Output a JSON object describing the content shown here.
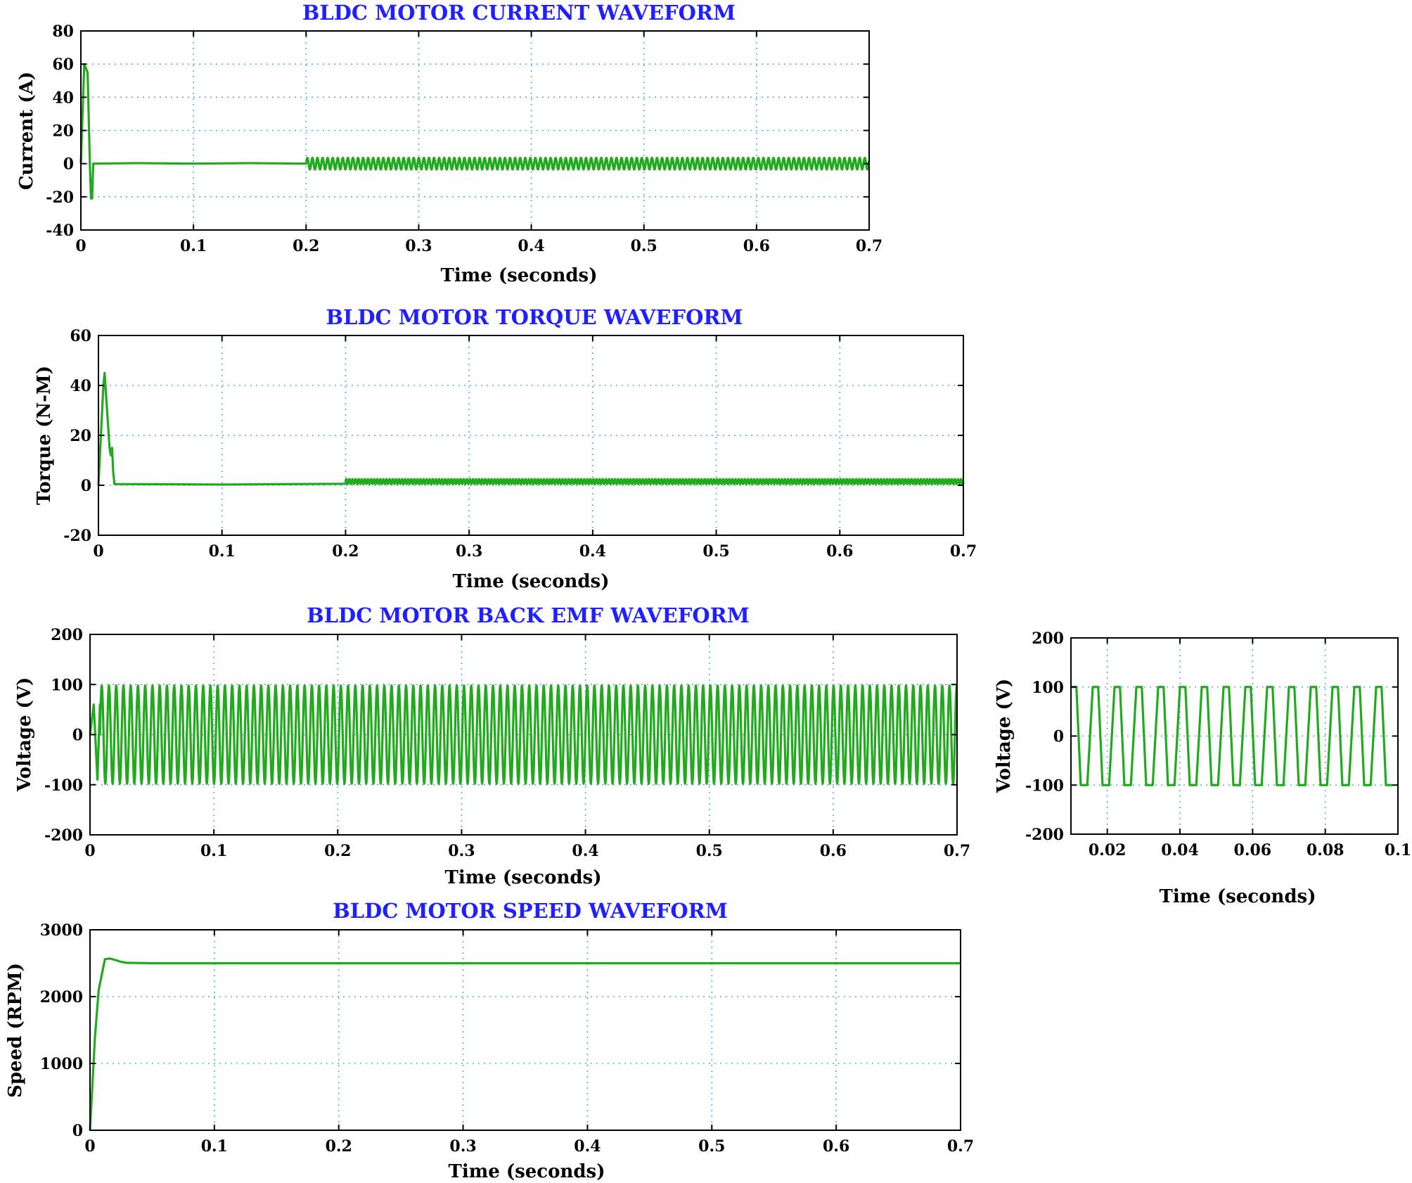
{
  "colors": {
    "trace": "#22aa1e",
    "title": "#1f1fff",
    "grid": "#55aaee",
    "axes": "#000000"
  },
  "chart_data": [
    {
      "type": "line",
      "title": "BLDC MOTOR CURRENT WAVEFORM",
      "xlabel": "Time (seconds)",
      "ylabel": "Current (A)",
      "xlim": [
        0,
        0.7
      ],
      "ylim": [
        -40,
        80
      ],
      "grid": true,
      "xticks": [
        0,
        0.1,
        0.2,
        0.3,
        0.4,
        0.5,
        0.6,
        0.7
      ],
      "yticks": [
        -40,
        -20,
        0,
        20,
        40,
        60,
        80
      ],
      "series": [
        {
          "points": [
            [
              0,
              0
            ],
            [
              0.003,
              60
            ],
            [
              0.006,
              55
            ],
            [
              0.008,
              0
            ],
            [
              0.009,
              -21
            ],
            [
              0.01,
              -21
            ],
            [
              0.011,
              0
            ],
            [
              0.05,
              0.3
            ],
            [
              0.1,
              0
            ],
            [
              0.15,
              0.3
            ],
            [
              0.2,
              0
            ]
          ],
          "oscillation": {
            "start": 0.2,
            "end": 0.7,
            "period": 0.0045,
            "amplitude": 3.5,
            "offset": 0
          }
        }
      ]
    },
    {
      "type": "line",
      "title": "BLDC MOTOR TORQUE WAVEFORM",
      "xlabel": "Time (seconds)",
      "ylabel": "Torque (N-M)",
      "xlim": [
        0,
        0.7
      ],
      "ylim": [
        -20,
        60
      ],
      "grid": true,
      "xticks": [
        0,
        0.1,
        0.2,
        0.3,
        0.4,
        0.5,
        0.6,
        0.7
      ],
      "yticks": [
        -20,
        0,
        20,
        40,
        60
      ],
      "series": [
        {
          "points": [
            [
              0,
              0
            ],
            [
              0.004,
              40
            ],
            [
              0.005,
              45
            ],
            [
              0.007,
              30
            ],
            [
              0.009,
              15
            ],
            [
              0.01,
              12
            ],
            [
              0.011,
              15
            ],
            [
              0.012,
              5
            ],
            [
              0.013,
              0.5
            ],
            [
              0.1,
              0.3
            ],
            [
              0.2,
              0.6
            ],
            [
              0.201,
              2
            ]
          ],
          "oscillation": {
            "start": 0.2,
            "end": 0.7,
            "period": 0.0025,
            "amplitude": 1,
            "offset": 1.5
          }
        }
      ]
    },
    {
      "type": "line",
      "title": "BLDC MOTOR BACK EMF WAVEFORM",
      "xlabel": "Time (seconds)",
      "ylabel": "Voltage (V)",
      "xlim": [
        0,
        0.7
      ],
      "ylim": [
        -200,
        200
      ],
      "grid": true,
      "xticks": [
        0,
        0.1,
        0.2,
        0.3,
        0.4,
        0.5,
        0.6,
        0.7
      ],
      "yticks": [
        -200,
        -100,
        0,
        100,
        200
      ],
      "series": [
        {
          "points": [
            [
              0,
              0
            ],
            [
              0.003,
              60
            ],
            [
              0.006,
              -90
            ],
            [
              0.008,
              60
            ]
          ],
          "oscillation": {
            "start": 0.008,
            "end": 0.7,
            "period": 0.00585,
            "amplitude": 98,
            "offset": 0
          }
        }
      ]
    },
    {
      "type": "line",
      "title": "",
      "xlabel": "Time (seconds)",
      "ylabel": "Voltage (V)",
      "xlim": [
        0.01,
        0.1
      ],
      "ylim": [
        -200,
        200
      ],
      "grid": true,
      "xticks": [
        0.02,
        0.04,
        0.06,
        0.08,
        0.1
      ],
      "yticks": [
        -200,
        -100,
        0,
        100,
        200
      ],
      "series": [
        {
          "trapezoid": {
            "start": 0.01,
            "end": 0.1,
            "period": 0.006,
            "high_start": 0.0,
            "high_end": 0.0015,
            "fall_end": 0.0027,
            "low_end": 0.0045,
            "amplitude": 100
          }
        }
      ]
    },
    {
      "type": "line",
      "title": "BLDC  MOTOR SPEED WAVEFORM",
      "xlabel": "Time (seconds)",
      "ylabel": "Speed (RPM)",
      "xlim": [
        0,
        0.7
      ],
      "ylim": [
        0,
        3000
      ],
      "grid": true,
      "xticks": [
        0,
        0.1,
        0.2,
        0.3,
        0.4,
        0.5,
        0.6,
        0.7
      ],
      "yticks": [
        0,
        1000,
        2000,
        3000
      ],
      "series": [
        {
          "points": [
            [
              0,
              0
            ],
            [
              0.004,
              1400
            ],
            [
              0.007,
              2100
            ],
            [
              0.012,
              2560
            ],
            [
              0.016,
              2570
            ],
            [
              0.02,
              2550
            ],
            [
              0.025,
              2520
            ],
            [
              0.03,
              2505
            ],
            [
              0.05,
              2500
            ],
            [
              0.1,
              2500
            ],
            [
              0.3,
              2500
            ],
            [
              0.5,
              2500
            ],
            [
              0.7,
              2500
            ]
          ]
        }
      ]
    }
  ]
}
